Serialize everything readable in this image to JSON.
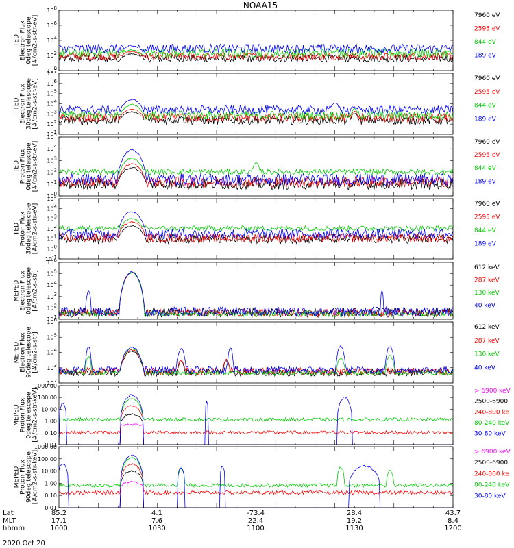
{
  "title": "NOAA15",
  "date_label": "2020 Oct 20",
  "footer": {
    "rows": [
      {
        "label": "Lat",
        "values": [
          "85.2",
          "4.1",
          "-73.4",
          "28.4",
          "43.7"
        ]
      },
      {
        "label": "MLT",
        "values": [
          "17.1",
          "7.6",
          "22.4",
          "19.2",
          "8.4"
        ]
      },
      {
        "label": "hhmm",
        "values": [
          "1000",
          "1030",
          "1100",
          "1130",
          "1200"
        ]
      }
    ]
  },
  "chart_data": [
    {
      "type": "line",
      "id": "p1",
      "scale": "log",
      "ylim": [
        1,
        100000000.0
      ],
      "xlim": [
        1000,
        1200
      ],
      "ylabel": [
        "TED",
        "Electron Flux",
        "0deg telescope",
        "[#/cm2-s-str-eV]"
      ],
      "ytick_labels": [
        "10^0",
        "10^2",
        "10^4",
        "10^6",
        "10^8"
      ],
      "legend": [
        {
          "name": "7960 eV",
          "color": "#000000"
        },
        {
          "name": "2595 eV",
          "color": "#ff0000"
        },
        {
          "name": "844 eV",
          "color": "#00cc00"
        },
        {
          "name": "189 eV",
          "color": "#0000ff"
        }
      ],
      "series": [
        {
          "color": "#000000",
          "base": 1.5,
          "noise": 1.0,
          "events": [
            [
              1037,
              8,
              2.2
            ],
            [
              1062,
              2,
              1.2
            ],
            [
              1071,
              1.5,
              0.5
            ],
            [
              1150,
              2.8,
              1.6
            ]
          ]
        },
        {
          "color": "#ff0000",
          "base": 1.8,
          "noise": 1.0,
          "events": [
            [
              1037,
              8,
              2.5
            ],
            [
              1062,
              2,
              1.4
            ],
            [
              1071,
              1.5,
              0.7
            ],
            [
              1150,
              2.8,
              1.8
            ]
          ]
        },
        {
          "color": "#00cc00",
          "base": 2.2,
          "noise": 1.2,
          "events": [
            [
              1037,
              8,
              2.7
            ],
            [
              1062,
              2,
              1.6
            ],
            [
              1071,
              1.5,
              1.0
            ],
            [
              1140,
              4,
              2.5
            ],
            [
              1150,
              2.8,
              2.1
            ]
          ]
        },
        {
          "color": "#0000ff",
          "base": 2.8,
          "noise": 1.2,
          "events": [
            [
              1037,
              8,
              3.3
            ],
            [
              1062,
              2,
              2.0
            ],
            [
              1071,
              1.5,
              1.5
            ],
            [
              1140,
              4,
              3.0
            ],
            [
              1150,
              2.8,
              2.6
            ]
          ]
        }
      ]
    },
    {
      "type": "line",
      "id": "p2",
      "scale": "log",
      "ylim": [
        1,
        10000000.0
      ],
      "xlim": [
        1000,
        1200
      ],
      "ylabel": [
        "TED",
        "Electron Flux",
        "30deg telescope",
        "[#/cm2-s-str-eV]"
      ],
      "ytick_labels": [
        "10^1",
        "10^2",
        "10^3",
        "10^4",
        "10^5",
        "10^6",
        "10^7"
      ],
      "legend": [
        {
          "name": "7960 eV",
          "color": "#000000"
        },
        {
          "name": "2595 eV",
          "color": "#ff0000"
        },
        {
          "name": "844 eV",
          "color": "#00cc00"
        },
        {
          "name": "189 eV",
          "color": "#0000ff"
        }
      ],
      "series": [
        {
          "color": "#000000",
          "base": 1.5,
          "noise": 1.0,
          "events": [
            [
              1037,
              8,
              2.6
            ],
            [
              1062,
              2,
              2.0
            ],
            [
              1150,
              2.8,
              2.4
            ]
          ]
        },
        {
          "color": "#ff0000",
          "base": 1.8,
          "noise": 1.0,
          "events": [
            [
              1037,
              8,
              2.9
            ],
            [
              1062,
              2,
              2.3
            ],
            [
              1150,
              2.8,
              2.6
            ]
          ]
        },
        {
          "color": "#00cc00",
          "base": 2.1,
          "noise": 1.0,
          "events": [
            [
              1037,
              8,
              3.4
            ],
            [
              1062,
              2,
              2.6
            ],
            [
              1150,
              2.8,
              2.9
            ]
          ]
        },
        {
          "color": "#0000ff",
          "base": 2.7,
          "noise": 1.0,
          "events": [
            [
              1037,
              8,
              4.0
            ],
            [
              1062,
              2,
              3.0
            ],
            [
              1140,
              4,
              3.6
            ],
            [
              1150,
              2.8,
              3.1
            ]
          ]
        }
      ]
    },
    {
      "type": "line",
      "id": "p3",
      "scale": "log",
      "ylim": [
        1,
        100000.0
      ],
      "xlim": [
        1000,
        1200
      ],
      "ylabel": [
        "TED",
        "Proton Flux",
        "0deg telescope",
        "[#/cm2-s-str-eV]"
      ],
      "ytick_labels": [
        "10^0",
        "10^1",
        "10^2",
        "10^3",
        "10^4",
        "10^5"
      ],
      "legend": [
        {
          "name": "7960 eV",
          "color": "#000000"
        },
        {
          "name": "2595 eV",
          "color": "#ff0000"
        },
        {
          "name": "844 eV",
          "color": "#00cc00"
        },
        {
          "name": "189 eV",
          "color": "#0000ff"
        }
      ],
      "series": [
        {
          "color": "#000000",
          "base": 0.9,
          "noise": 0.9,
          "events": [
            [
              1037,
              8,
              2.4
            ]
          ]
        },
        {
          "color": "#ff0000",
          "base": 1.1,
          "noise": 0.9,
          "events": [
            [
              1037,
              8,
              2.7
            ]
          ]
        },
        {
          "color": "#00cc00",
          "base": 2.0,
          "noise": 0.5,
          "events": [
            [
              1037,
              8,
              3.2
            ],
            [
              1100,
              3,
              2.8
            ]
          ]
        },
        {
          "color": "#0000ff",
          "base": 1.3,
          "noise": 1.0,
          "events": [
            [
              1037,
              8,
              3.9
            ]
          ]
        }
      ]
    },
    {
      "type": "line",
      "id": "p4",
      "scale": "log",
      "ylim": [
        0.1,
        100000.0
      ],
      "xlim": [
        1000,
        1200
      ],
      "ylabel": [
        "TED",
        "Proton Flux",
        "30deg telescope",
        "[#/cm2-s-str-eV]"
      ],
      "ytick_labels": [
        "10^-1",
        "10^0",
        "10^1",
        "10^2",
        "10^3",
        "10^4",
        "10^5"
      ],
      "legend": [
        {
          "name": "7960 eV",
          "color": "#000000"
        },
        {
          "name": "2595 eV",
          "color": "#ff0000"
        },
        {
          "name": "844 eV",
          "color": "#00cc00"
        },
        {
          "name": "189 eV",
          "color": "#0000ff"
        }
      ],
      "series": [
        {
          "color": "#000000",
          "base": 0.9,
          "noise": 0.9,
          "events": [
            [
              1037,
              8,
              2.3
            ]
          ]
        },
        {
          "color": "#ff0000",
          "base": 1.0,
          "noise": 0.9,
          "events": [
            [
              1037,
              8,
              2.7
            ]
          ]
        },
        {
          "color": "#00cc00",
          "base": 2.0,
          "noise": 0.5,
          "events": [
            [
              1037,
              8,
              3.0
            ]
          ]
        },
        {
          "color": "#0000ff",
          "base": 1.4,
          "noise": 1.0,
          "events": [
            [
              1037,
              8,
              3.7
            ]
          ]
        }
      ]
    },
    {
      "type": "line",
      "id": "p5",
      "scale": "log",
      "ylim": [
        1,
        1000000.0
      ],
      "xlim": [
        1000,
        1200
      ],
      "ylabel": [
        "MEPED",
        "Electron Flux",
        "0deg telescope",
        "[#/cm2-s-str]"
      ],
      "ytick_labels": [
        "10^1",
        "10^2",
        "10^3",
        "10^4",
        "10^5",
        "10^6"
      ],
      "legend": [
        {
          "name": "612 keV",
          "color": "#000000"
        },
        {
          "name": "287 keV",
          "color": "#ff0000"
        },
        {
          "name": "130 keV",
          "color": "#00cc00"
        },
        {
          "name": "40 keV",
          "color": "#0000ff"
        }
      ],
      "series": [
        {
          "color": "#000000",
          "base": 0.6,
          "noise": 1.0,
          "events": [
            [
              1037,
              6.5,
              4.9
            ]
          ]
        },
        {
          "color": "#ff0000",
          "base": 0.6,
          "noise": 0.8,
          "events": [
            [
              1037,
              6.5,
              4.9
            ]
          ]
        },
        {
          "color": "#00cc00",
          "base": 0.5,
          "noise": 0.6,
          "events": [
            [
              1037,
              6.5,
              4.9
            ]
          ]
        },
        {
          "color": "#0000ff",
          "base": 0.7,
          "noise": 1.0,
          "events": [
            [
              1037,
              6.5,
              5.0
            ],
            [
              1015,
              1.5,
              3.0
            ],
            [
              1164,
              1,
              3.0
            ]
          ]
        }
      ]
    },
    {
      "type": "line",
      "id": "p6",
      "scale": "log",
      "ylim": [
        10,
        1000000.0
      ],
      "xlim": [
        1000,
        1200
      ],
      "ylabel": [
        "MEPED",
        "Electron Flux",
        "90deg telescope",
        "[#/cm2-s-str]"
      ],
      "ytick_labels": [
        "10^2",
        "10^3",
        "10^4",
        "10^5",
        "10^6"
      ],
      "legend": [
        {
          "name": "612 keV",
          "color": "#000000"
        },
        {
          "name": "287 keV",
          "color": "#ff0000"
        },
        {
          "name": "130 keV",
          "color": "#00cc00"
        },
        {
          "name": "40 keV",
          "color": "#0000ff"
        }
      ],
      "series": [
        {
          "color": "#000000",
          "base": 1.8,
          "noise": 0.6,
          "events": [
            [
              1037,
              7,
              3.6
            ],
            [
              1062,
              2.5,
              2.8
            ],
            [
              1085,
              2.5,
              2.8
            ]
          ]
        },
        {
          "color": "#ff0000",
          "base": 1.9,
          "noise": 0.6,
          "events": [
            [
              1037,
              7,
              3.7
            ],
            [
              1062,
              2.5,
              2.9
            ],
            [
              1085,
              2.5,
              2.9
            ]
          ]
        },
        {
          "color": "#00cc00",
          "base": 1.8,
          "noise": 0.4,
          "events": [
            [
              1037,
              7,
              3.8
            ],
            [
              1015,
              2,
              3.2
            ],
            [
              1143,
              3,
              3.0
            ],
            [
              1168,
              3,
              3.2
            ]
          ]
        },
        {
          "color": "#0000ff",
          "base": 2.0,
          "noise": 0.6,
          "events": [
            [
              1037,
              7,
              3.9
            ],
            [
              1015,
              2,
              4.0
            ],
            [
              1062,
              3,
              3.8
            ],
            [
              1087,
              2,
              3.9
            ],
            [
              1143,
              3,
              4.0
            ],
            [
              1168,
              3,
              4.0
            ]
          ]
        }
      ]
    },
    {
      "type": "line",
      "id": "p7",
      "scale": "log",
      "ylim": [
        0.01,
        1000
      ],
      "xlim": [
        1000,
        1200
      ],
      "ylabel": [
        "MEPED",
        "Proton Flux",
        "0deg telescope",
        "[#/cm2-s-str-keV]"
      ],
      "ytick_labels": [
        "0.01",
        "0.10",
        "1.00",
        "10.00",
        "100.00",
        "1000.00"
      ],
      "legend": [
        {
          "name": "> 6900 keV",
          "color": "#ff00ff"
        },
        {
          "name": "2500-6900",
          "color": "#000000"
        },
        {
          "name": "240-800 ke",
          "color": "#ff0000"
        },
        {
          "name": "80-240 keV",
          "color": "#00cc00"
        },
        {
          "name": "30-80 keV",
          "color": "#0000ff"
        }
      ],
      "series": [
        {
          "color": "#ff00ff",
          "base": -3,
          "noise": 0.2,
          "events": [
            [
              1037,
              6,
              -0.3
            ]
          ]
        },
        {
          "color": "#000000",
          "base": -3,
          "noise": 0.2,
          "events": [
            [
              1037,
              6,
              0.6
            ]
          ]
        },
        {
          "color": "#ff0000",
          "base": -1,
          "noise": 0.3,
          "events": [
            [
              1037,
              6,
              1.3
            ]
          ]
        },
        {
          "color": "#00cc00",
          "base": 0.1,
          "noise": 0.3,
          "events": [
            [
              1037,
              6,
              1.9
            ]
          ]
        },
        {
          "color": "#0000ff",
          "base": -3,
          "noise": 0.3,
          "events": [
            [
              1037,
              6,
              2.2
            ],
            [
              1002,
              2,
              1.5
            ],
            [
              1075,
              1,
              1.6
            ],
            [
              1145,
              4,
              2.0
            ]
          ]
        }
      ]
    },
    {
      "type": "line",
      "id": "p8",
      "scale": "log",
      "ylim": [
        0.01,
        1000
      ],
      "xlim": [
        1000,
        1200
      ],
      "ylabel": [
        "MEPED",
        "Proton Flux",
        "90deg telescope",
        "[#/cm2-s-str-keV]"
      ],
      "ytick_labels": [
        "0.01",
        "0.10",
        "1.00",
        "10.00",
        "100.00",
        "1000.00"
      ],
      "legend": [
        {
          "name": "> 6900 keV",
          "color": "#ff00ff"
        },
        {
          "name": "2500-6900",
          "color": "#000000"
        },
        {
          "name": "240-800 ke",
          "color": "#ff0000"
        },
        {
          "name": "80-240 keV",
          "color": "#00cc00"
        },
        {
          "name": "30-80 keV",
          "color": "#0000ff"
        }
      ],
      "series": [
        {
          "color": "#ff00ff",
          "base": -3,
          "noise": 0.2,
          "events": [
            [
              1037,
              6,
              0.1
            ]
          ]
        },
        {
          "color": "#000000",
          "base": -3,
          "noise": 0.2,
          "events": [
            [
              1037,
              6,
              1.0
            ]
          ]
        },
        {
          "color": "#ff0000",
          "base": -0.8,
          "noise": 0.3,
          "events": [
            [
              1037,
              6,
              1.6
            ]
          ]
        },
        {
          "color": "#00cc00",
          "base": -0.2,
          "noise": 0.3,
          "events": [
            [
              1037,
              6,
              2.1
            ],
            [
              1062,
              2,
              1.2
            ],
            [
              1143,
              2,
              1.3
            ],
            [
              1168,
              2,
              1.0
            ]
          ]
        },
        {
          "color": "#0000ff",
          "base": -3,
          "noise": 0.3,
          "events": [
            [
              1037,
              6,
              2.3
            ],
            [
              1002,
              3,
              1.6
            ],
            [
              1062,
              2,
              1.3
            ],
            [
              1083,
              1.5,
              1.4
            ],
            [
              1155,
              8,
              1.4
            ]
          ]
        }
      ]
    }
  ]
}
